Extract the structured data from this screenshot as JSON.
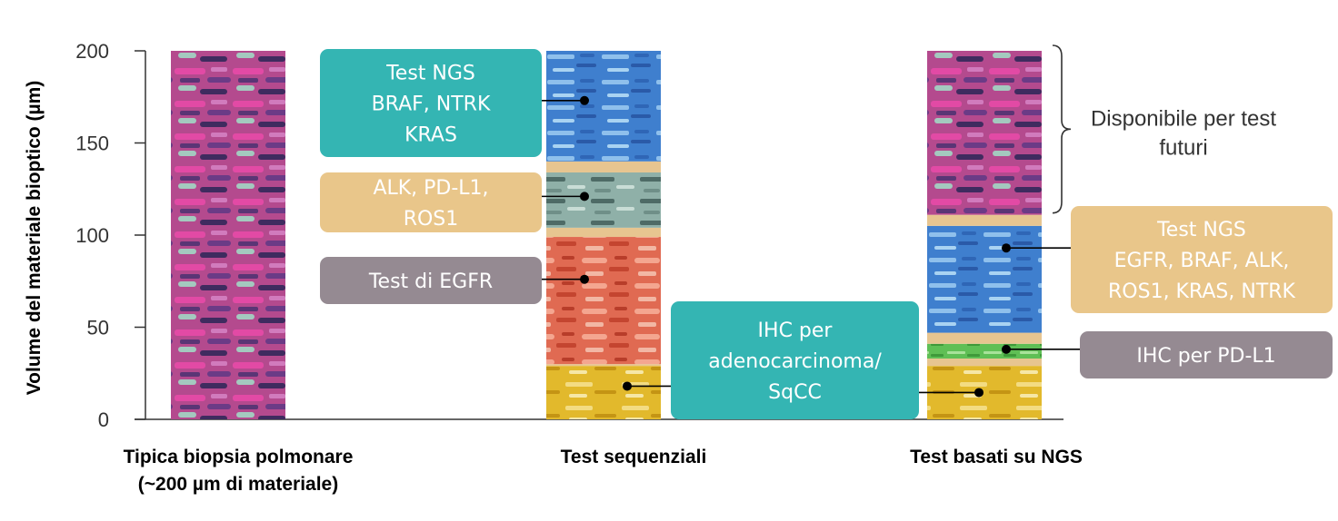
{
  "colors": {
    "teal": "#34b5b3",
    "tan": "#e9c68a",
    "mauve": "#958a92",
    "axis": "#333333",
    "text": "#000000"
  },
  "chart_data": {
    "type": "stacked-column-diagram",
    "ylabel": "Volume del materiale bioptico (µm)",
    "ylim": [
      0,
      200
    ],
    "yticks": [
      0,
      50,
      100,
      150,
      200
    ],
    "columns": [
      {
        "label_lines": [
          "Tipica biopsia polmonare",
          "(~200 µm di materiale)"
        ],
        "segments": [
          {
            "from": 0,
            "to": 200,
            "texture": "pink-purple"
          }
        ]
      },
      {
        "label_lines": [
          "Test sequenziali"
        ],
        "segments": [
          {
            "from": 0,
            "to": 29,
            "texture": "yellow"
          },
          {
            "from": 29,
            "to": 30,
            "texture": "tan"
          },
          {
            "from": 30,
            "to": 99,
            "texture": "red"
          },
          {
            "from": 99,
            "to": 104,
            "texture": "tan"
          },
          {
            "from": 104,
            "to": 134,
            "texture": "gray-teal"
          },
          {
            "from": 134,
            "to": 140,
            "texture": "tan"
          },
          {
            "from": 140,
            "to": 200,
            "texture": "blue"
          }
        ]
      },
      {
        "label_lines": [
          "Test basati su NGS"
        ],
        "segments": [
          {
            "from": 0,
            "to": 29,
            "texture": "yellow"
          },
          {
            "from": 29,
            "to": 33,
            "texture": "tan"
          },
          {
            "from": 33,
            "to": 41,
            "texture": "green"
          },
          {
            "from": 41,
            "to": 47,
            "texture": "tan"
          },
          {
            "from": 47,
            "to": 105,
            "texture": "blue"
          },
          {
            "from": 105,
            "to": 111,
            "texture": "tan"
          },
          {
            "from": 111,
            "to": 200,
            "texture": "pink-purple"
          }
        ]
      }
    ],
    "annotations": [
      {
        "lines": [
          "Test NGS",
          "BRAF, NTRK",
          "KRAS"
        ],
        "color": "teal",
        "column": 1,
        "value": 173
      },
      {
        "lines": [
          "ALK, PD-L1,",
          "ROS1"
        ],
        "color": "tan",
        "column": 1,
        "value": 121
      },
      {
        "lines": [
          "Test di EGFR"
        ],
        "color": "mauve",
        "column": 1,
        "value": 76
      },
      {
        "lines": [
          "IHC per",
          "adenocarcinoma/",
          "SqCC"
        ],
        "color": "teal",
        "column": 1,
        "value": 18
      },
      {
        "lines": [
          "Test NGS",
          "EGFR, BRAF, ALK,",
          "ROS1, KRAS, NTRK"
        ],
        "color": "tan",
        "column": 2,
        "value": 93
      },
      {
        "lines": [
          "IHC per PD-L1"
        ],
        "color": "mauve",
        "column": 2,
        "value": 38
      }
    ],
    "bracket_note": {
      "lines": [
        "Disponibile per test",
        "futuri"
      ],
      "from": 111,
      "to": 200
    }
  }
}
